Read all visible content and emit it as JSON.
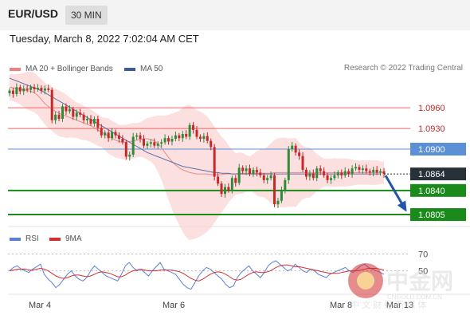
{
  "header": {
    "pair": "EUR/USD",
    "timeframe": "30 MIN"
  },
  "datetime": "Tuesday, March 8, 2022 7:02:04 AM CET",
  "legend": {
    "main": [
      {
        "label": "MA 20 + Bollinger Bands",
        "color": "#f08080"
      },
      {
        "label": "MA 50",
        "color": "#3d5a99"
      }
    ],
    "rsi": [
      {
        "label": "RSI",
        "color": "#5b7fd6"
      },
      {
        "label": "9MA",
        "color": "#d32f2f"
      }
    ]
  },
  "credit": "Research © 2022 Trading Central",
  "watermark": {
    "brand": "中金网",
    "url": "CNGOLD.COM.CN",
    "tagline": "中 文 财 经 新 媒 体"
  },
  "chart_data": {
    "type": "candlestick",
    "y_range": [
      1.079,
      1.101
    ],
    "levels": [
      {
        "value": 1.096,
        "label": "1.0960",
        "color": "#ee6666",
        "style": "resistance"
      },
      {
        "value": 1.093,
        "label": "1.0930",
        "color": "#ee6666",
        "style": "resistance"
      },
      {
        "value": 1.09,
        "label": "1.0900",
        "color": "#5b8fd6",
        "style": "pivot"
      },
      {
        "value": 1.084,
        "label": "1.0840",
        "color": "#1a8a1a",
        "style": "support"
      },
      {
        "value": 1.0805,
        "label": "1.0805",
        "color": "#1a8a1a",
        "style": "support"
      }
    ],
    "current_price": {
      "value": 1.0864,
      "label": "1.0864"
    },
    "x_labels": [
      "Mar 4",
      "Mar 6",
      "Mar 8",
      "Mar 13"
    ],
    "closes": [
      1.0985,
      1.098,
      1.099,
      1.0984,
      1.0988,
      1.0986,
      1.099,
      1.0987,
      1.0989,
      1.0985,
      1.0988,
      1.0986,
      1.0942,
      1.095,
      1.0944,
      1.0962,
      1.0955,
      1.0958,
      1.0947,
      1.0953,
      1.095,
      1.0942,
      1.0944,
      1.0937,
      1.0944,
      1.0931,
      1.092,
      1.0924,
      1.0916,
      1.0925,
      1.092,
      1.0915,
      1.091,
      1.0889,
      1.0892,
      1.0918,
      1.092,
      1.0915,
      1.0905,
      1.0908,
      1.091,
      1.0905,
      1.0908,
      1.091,
      1.0916,
      1.0911,
      1.0915,
      1.092,
      1.0916,
      1.0922,
      1.0918,
      1.0935,
      1.0928,
      1.0918,
      1.0915,
      1.0919,
      1.0912,
      1.0903,
      1.086,
      1.085,
      1.0835,
      1.0845,
      1.084,
      1.0858,
      1.0851,
      1.0873,
      1.0868,
      1.0872,
      1.0864,
      1.087,
      1.0866,
      1.0862,
      1.0855,
      1.0858,
      1.0862,
      1.082,
      1.0825,
      1.084,
      1.0855,
      1.09,
      1.0905,
      1.0895,
      1.089,
      1.087,
      1.086,
      1.0865,
      1.0858,
      1.0872,
      1.0868,
      1.0862,
      1.0855,
      1.0858,
      1.0862,
      1.0866,
      1.0862,
      1.0868,
      1.0864,
      1.0872,
      1.0874,
      1.087,
      1.0872,
      1.0868,
      1.0866,
      1.087,
      1.0866,
      1.0868,
      1.0864
    ],
    "ma20": [
      1.099,
      1.0989,
      1.0988,
      1.0987,
      1.0986,
      1.0985,
      1.0984,
      1.0982,
      1.0978,
      1.0972,
      1.0966,
      1.0962,
      1.0958,
      1.0955,
      1.0952,
      1.095,
      1.0948,
      1.0946,
      1.0944,
      1.0942,
      1.094,
      1.0938,
      1.0936,
      1.0934,
      1.0931,
      1.0928,
      1.0925,
      1.0922,
      1.0919,
      1.0916,
      1.0913,
      1.0911,
      1.091,
      1.091,
      1.0911,
      1.0912,
      1.0913,
      1.0914,
      1.0915,
      1.0915,
      1.0914,
      1.0912,
      1.0908,
      1.0902,
      1.0895,
      1.0888,
      1.0882,
      1.0877,
      1.0873,
      1.087,
      1.0868,
      1.0866,
      1.0865,
      1.0864,
      1.0864,
      1.0864,
      1.0864,
      1.0863,
      1.0863,
      1.0863,
      1.0863,
      1.0864,
      1.0864,
      1.0864,
      1.0864,
      1.0865,
      1.0865,
      1.0865,
      1.0865,
      1.0865,
      1.0865,
      1.0865,
      1.0865,
      1.0865,
      1.0865,
      1.0866,
      1.0866,
      1.0866,
      1.0866,
      1.0866,
      1.0866,
      1.0866,
      1.0866,
      1.0866,
      1.0866,
      1.0866,
      1.0866,
      1.0866,
      1.0866,
      1.0866,
      1.0866,
      1.0866,
      1.0866,
      1.0866,
      1.0866,
      1.0866,
      1.0866,
      1.0866,
      1.0866,
      1.0866,
      1.0866,
      1.0866,
      1.0866,
      1.0866,
      1.0866,
      1.0866,
      1.0866
    ],
    "ma50": [
      1.1003,
      1.1001,
      1.0999,
      1.0997,
      1.0995,
      1.0993,
      1.0991,
      1.0989,
      1.0987,
      1.0985,
      1.0982,
      1.0979,
      1.0976,
      1.0973,
      1.097,
      1.0967,
      1.0964,
      1.0961,
      1.0958,
      1.0955,
      1.0952,
      1.0949,
      1.0946,
      1.0943,
      1.094,
      1.0937,
      1.0934,
      1.0931,
      1.0928,
      1.0925,
      1.0922,
      1.0919,
      1.0916,
      1.0913,
      1.091,
      1.0907,
      1.0904,
      1.0901,
      1.0898,
      1.0895,
      1.0893,
      1.0891,
      1.0889,
      1.0887,
      1.0885,
      1.0883,
      1.0881,
      1.0879,
      1.0877,
      1.0875,
      1.0874,
      1.0873,
      1.0872,
      1.0871,
      1.087,
      1.0869,
      1.0868,
      1.0867,
      1.0866,
      1.0866,
      1.0865,
      1.0865,
      1.0865,
      1.0864,
      1.0864,
      1.0864,
      1.0864,
      1.0864,
      1.0864,
      1.0864,
      1.0864,
      1.0864,
      1.0864,
      1.0864,
      1.0864,
      1.0864,
      1.0864,
      1.0864,
      1.0864,
      1.0864,
      1.0864,
      1.0864,
      1.0864,
      1.0864,
      1.0864,
      1.0864,
      1.0864,
      1.0864,
      1.0864,
      1.0864,
      1.0864,
      1.0864,
      1.0864,
      1.0864,
      1.0864,
      1.0864,
      1.0864,
      1.0864,
      1.0864,
      1.0864,
      1.0864,
      1.0864,
      1.0864,
      1.0864,
      1.0864,
      1.0864
    ],
    "rsi_panel": {
      "y_range": [
        25,
        80
      ],
      "levels": [
        {
          "value": 70,
          "label": "70"
        },
        {
          "value": 50,
          "label": "50"
        }
      ],
      "rsi": [
        50,
        54,
        56,
        52,
        50,
        48,
        52,
        55,
        58,
        46,
        40,
        36,
        30,
        34,
        40,
        46,
        50,
        44,
        40,
        38,
        42,
        50,
        56,
        52,
        48,
        44,
        42,
        40,
        38,
        46,
        56,
        60,
        54,
        50,
        52,
        48,
        44,
        50,
        55,
        60,
        52,
        50,
        48,
        46,
        40,
        34,
        30,
        28,
        36,
        44,
        50,
        54,
        52,
        48,
        44,
        40,
        34,
        30,
        32,
        42,
        48,
        52,
        56,
        50,
        46,
        42,
        48,
        56,
        60,
        62,
        58,
        54,
        50,
        52,
        58,
        54,
        50,
        48,
        52,
        50,
        46,
        44,
        42,
        46,
        48,
        50,
        52,
        54,
        50,
        48,
        52,
        56,
        58,
        54,
        52,
        50,
        48,
        46
      ],
      "ma9": [
        50,
        51,
        52,
        52,
        52,
        51,
        51,
        52,
        53,
        52,
        50,
        47,
        44,
        42,
        41,
        42,
        44,
        45,
        45,
        44,
        43,
        44,
        46,
        48,
        49,
        48,
        47,
        45,
        43,
        43,
        45,
        48,
        50,
        51,
        52,
        51,
        50,
        50,
        50,
        51,
        51,
        51,
        51,
        50,
        49,
        47,
        44,
        41,
        39,
        38,
        40,
        43,
        46,
        48,
        49,
        48,
        46,
        43,
        40,
        39,
        40,
        43,
        46,
        48,
        49,
        48,
        48,
        49,
        51,
        54,
        56,
        57,
        57,
        56,
        55,
        55,
        54,
        53,
        52,
        51,
        50,
        49,
        48,
        47,
        47,
        47,
        48,
        49,
        50,
        50,
        50,
        51,
        52,
        53,
        53,
        53,
        52,
        51
      ]
    }
  }
}
